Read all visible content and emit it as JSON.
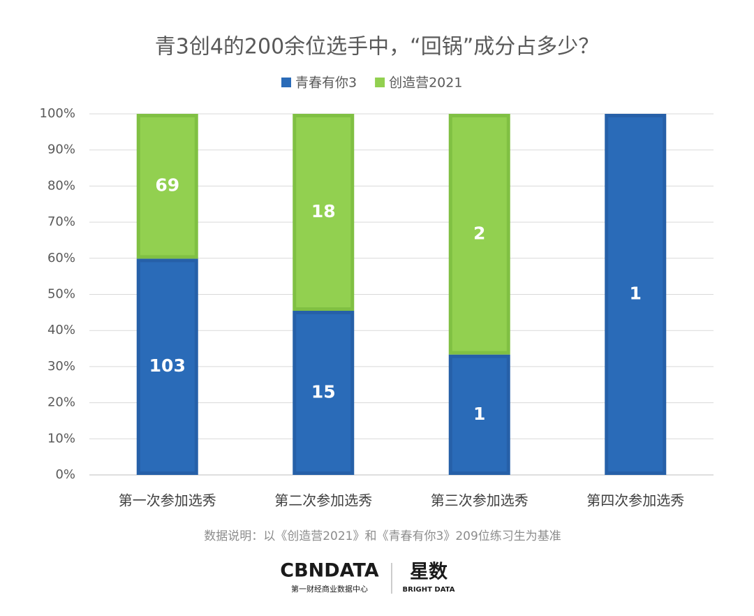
{
  "chart_data": {
    "type": "bar",
    "stacking": "percent",
    "title": "青3创4的200余位选手中，“回锅”成分占多少？",
    "categories": [
      "第一次参加选秀",
      "第二次参加选秀",
      "第三次参加选秀",
      "第四次参加选秀"
    ],
    "series": [
      {
        "name": "青春有你3",
        "color": "#2a6bb8",
        "values": [
          103,
          15,
          1,
          1
        ]
      },
      {
        "name": "创造营2021",
        "color": "#92d050",
        "values": [
          69,
          18,
          2,
          null
        ]
      }
    ],
    "ylim": [
      0,
      100
    ],
    "yticks": [
      {
        "value": 0,
        "label": "0%"
      },
      {
        "value": 10,
        "label": "10%"
      },
      {
        "value": 20,
        "label": "20%"
      },
      {
        "value": 30,
        "label": "30%"
      },
      {
        "value": 40,
        "label": "40%"
      },
      {
        "value": 50,
        "label": "50%"
      },
      {
        "value": 60,
        "label": "60%"
      },
      {
        "value": 70,
        "label": "70%"
      },
      {
        "value": 80,
        "label": "80%"
      },
      {
        "value": 90,
        "label": "90%"
      },
      {
        "value": 100,
        "label": "100%"
      }
    ],
    "grid": true,
    "legend": "top",
    "note": "数据说明：以《创造营2021》和《青春有你3》209位练习生为基准"
  },
  "footer": {
    "brand": "CBNDATA",
    "brand_sub": "第一财经商业数据中心",
    "partner": "星数",
    "partner_sub": "BRIGHT DATA"
  }
}
